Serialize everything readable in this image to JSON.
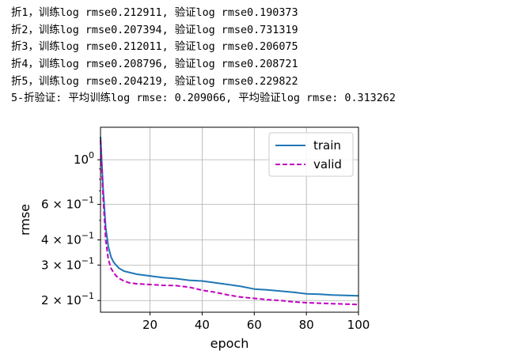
{
  "console": {
    "lines": [
      "折1，训练log rmse0.212911, 验证log rmse0.190373",
      "折2，训练log rmse0.207394, 验证log rmse0.731319",
      "折3，训练log rmse0.212011, 验证log rmse0.206075",
      "折4，训练log rmse0.208796, 验证log rmse0.208721",
      "折5，训练log rmse0.204219, 验证log rmse0.229822",
      "5-折验证: 平均训练log rmse: 0.209066, 平均验证log rmse: 0.313262"
    ]
  },
  "chart_data": {
    "type": "line",
    "title": "",
    "xlabel": "epoch",
    "ylabel": "rmse",
    "xlim": [
      1,
      100
    ],
    "ylim": [
      0.175,
      1.45
    ],
    "yscale": "log",
    "grid": true,
    "legend_position": "upper right",
    "x_ticks": [
      20,
      40,
      60,
      80,
      100
    ],
    "y_ticks": [
      {
        "value": 1.0,
        "base": "10",
        "exp": "0"
      },
      {
        "value": 0.6,
        "base": "6 × 10",
        "exp": "−1"
      },
      {
        "value": 0.4,
        "base": "4 × 10",
        "exp": "−1"
      },
      {
        "value": 0.3,
        "base": "3 × 10",
        "exp": "−1"
      },
      {
        "value": 0.2,
        "base": "2 × 10",
        "exp": "−1"
      }
    ],
    "x": [
      1,
      2,
      3,
      4,
      5,
      6,
      7,
      8,
      10,
      12,
      15,
      20,
      25,
      30,
      35,
      40,
      45,
      50,
      55,
      60,
      65,
      70,
      75,
      80,
      85,
      90,
      95,
      100
    ],
    "series": [
      {
        "name": "train",
        "color": "#1f77b4",
        "style": "solid",
        "values": [
          1.3,
          0.72,
          0.46,
          0.37,
          0.33,
          0.31,
          0.3,
          0.29,
          0.28,
          0.276,
          0.27,
          0.265,
          0.26,
          0.257,
          0.252,
          0.25,
          0.245,
          0.24,
          0.235,
          0.228,
          0.226,
          0.223,
          0.22,
          0.216,
          0.215,
          0.213,
          0.212,
          0.211
        ]
      },
      {
        "name": "valid",
        "color": "#bf00bf",
        "style": "dashed",
        "values": [
          1.25,
          0.65,
          0.4,
          0.32,
          0.29,
          0.275,
          0.265,
          0.258,
          0.25,
          0.245,
          0.242,
          0.24,
          0.238,
          0.237,
          0.233,
          0.225,
          0.22,
          0.213,
          0.208,
          0.205,
          0.202,
          0.2,
          0.197,
          0.195,
          0.194,
          0.193,
          0.192,
          0.191
        ]
      }
    ]
  }
}
